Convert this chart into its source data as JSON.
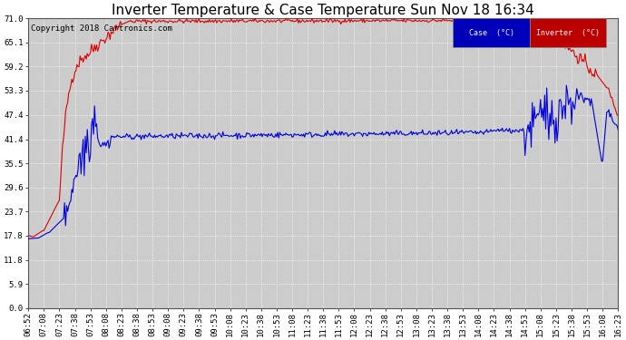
{
  "title": "Inverter Temperature & Case Temperature Sun Nov 18 16:34",
  "copyright": "Copyright 2018 Cartronics.com",
  "legend_case_label": "Case  (°C)",
  "legend_inverter_label": "Inverter  (°C)",
  "case_color": "#0000dd",
  "inverter_color": "#dd0000",
  "legend_case_bg": "#0000bb",
  "legend_inverter_bg": "#bb0000",
  "background_color": "#ffffff",
  "plot_bg_color": "#cccccc",
  "grid_color": "#ffffff",
  "y_ticks": [
    0.0,
    5.9,
    11.8,
    17.8,
    23.7,
    29.6,
    35.5,
    41.4,
    47.4,
    53.3,
    59.2,
    65.1,
    71.0
  ],
  "ylim": [
    0.0,
    71.0
  ],
  "x_tick_labels": [
    "06:52",
    "07:08",
    "07:23",
    "07:38",
    "07:53",
    "08:08",
    "08:23",
    "08:38",
    "08:53",
    "09:08",
    "09:23",
    "09:38",
    "09:53",
    "10:08",
    "10:23",
    "10:38",
    "10:53",
    "11:08",
    "11:23",
    "11:38",
    "11:53",
    "12:08",
    "12:23",
    "12:38",
    "12:53",
    "13:08",
    "13:23",
    "13:38",
    "13:53",
    "14:08",
    "14:23",
    "14:38",
    "14:53",
    "15:08",
    "15:23",
    "15:38",
    "15:53",
    "16:08",
    "16:23"
  ],
  "title_fontsize": 11,
  "tick_fontsize": 6.5,
  "copyright_fontsize": 6.5
}
